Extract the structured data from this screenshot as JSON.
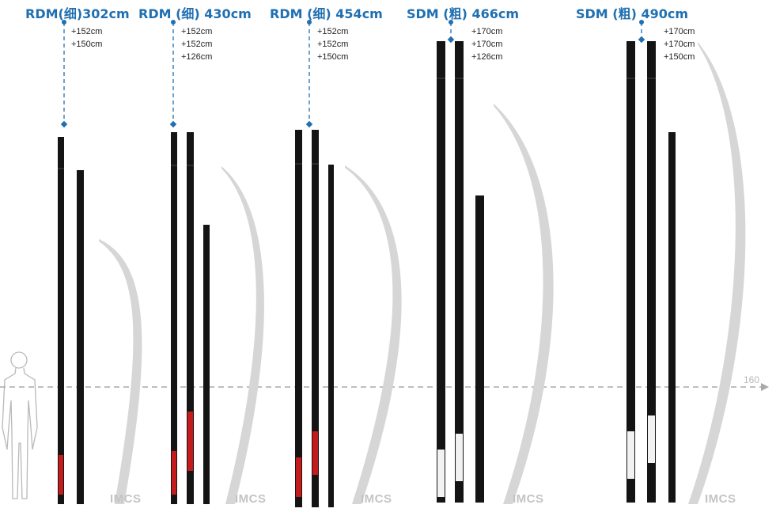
{
  "reference_height": "160",
  "masts": [
    {
      "title": "RDM(细)302cm",
      "segments": [
        "+152cm",
        "+150cm"
      ],
      "watermark": "IMCS"
    },
    {
      "title": "RDM (细) 430cm",
      "segments": [
        "+152cm",
        "+152cm",
        "+126cm"
      ],
      "watermark": "IMCS"
    },
    {
      "title": "RDM (细) 454cm",
      "segments": [
        "+152cm",
        "+152cm",
        "+150cm"
      ],
      "watermark": "IMCS"
    },
    {
      "title": "SDM (粗) 466cm",
      "segments": [
        "+170cm",
        "+170cm",
        "+126cm"
      ],
      "watermark": "IMCS"
    },
    {
      "title": "SDM (粗) 490cm",
      "segments": [
        "+170cm",
        "+170cm",
        "+150cm"
      ],
      "watermark": "IMCS"
    }
  ],
  "colors": {
    "accent": "#1f6fb1",
    "mast": "#141414",
    "red_band": "#c41c1c",
    "white_band": "#f2f2f2",
    "curve": "#d4d4d4",
    "reference_line": "#a8a8a8"
  }
}
